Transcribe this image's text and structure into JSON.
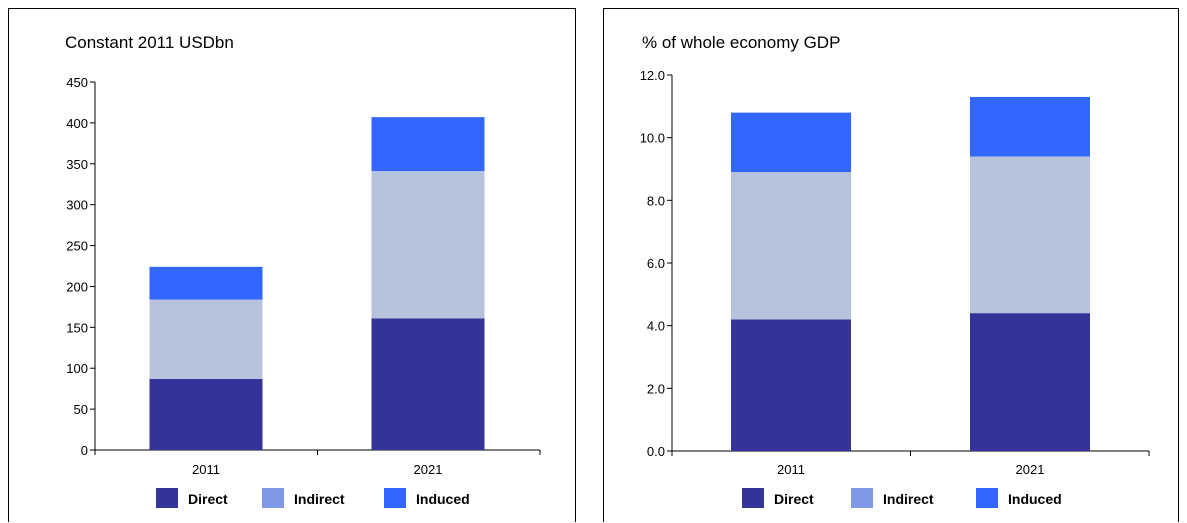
{
  "colors": {
    "direct": "#333399",
    "indirect": "#b6c3dc",
    "induced": "#3366ff",
    "legend_indirect": "#7f99e6"
  },
  "chart_data": [
    {
      "type": "bar",
      "stacked": true,
      "title": "Constant 2011 USDbn",
      "xlabel": "",
      "ylabel": "",
      "categories": [
        "2011",
        "2021"
      ],
      "series": [
        {
          "name": "Direct",
          "values": [
            87,
            161
          ]
        },
        {
          "name": "Indirect",
          "values": [
            97,
            180
          ]
        },
        {
          "name": "Induced",
          "values": [
            40,
            66
          ]
        }
      ],
      "ylim": [
        0,
        450
      ],
      "yticks": [
        "0",
        "50",
        "100",
        "150",
        "200",
        "250",
        "300",
        "350",
        "400",
        "450"
      ],
      "grid": false,
      "legend": "bottom"
    },
    {
      "type": "bar",
      "stacked": true,
      "title": "% of whole economy GDP",
      "xlabel": "",
      "ylabel": "",
      "categories": [
        "2011",
        "2021"
      ],
      "series": [
        {
          "name": "Direct",
          "values": [
            4.2,
            4.4
          ]
        },
        {
          "name": "Indirect",
          "values": [
            4.7,
            5.0
          ]
        },
        {
          "name": "Induced",
          "values": [
            1.9,
            1.9
          ]
        }
      ],
      "ylim": [
        0,
        12
      ],
      "yticks": [
        "0.0",
        "2.0",
        "4.0",
        "6.0",
        "8.0",
        "10.0",
        "12.0"
      ],
      "grid": false,
      "legend": "bottom"
    }
  ]
}
